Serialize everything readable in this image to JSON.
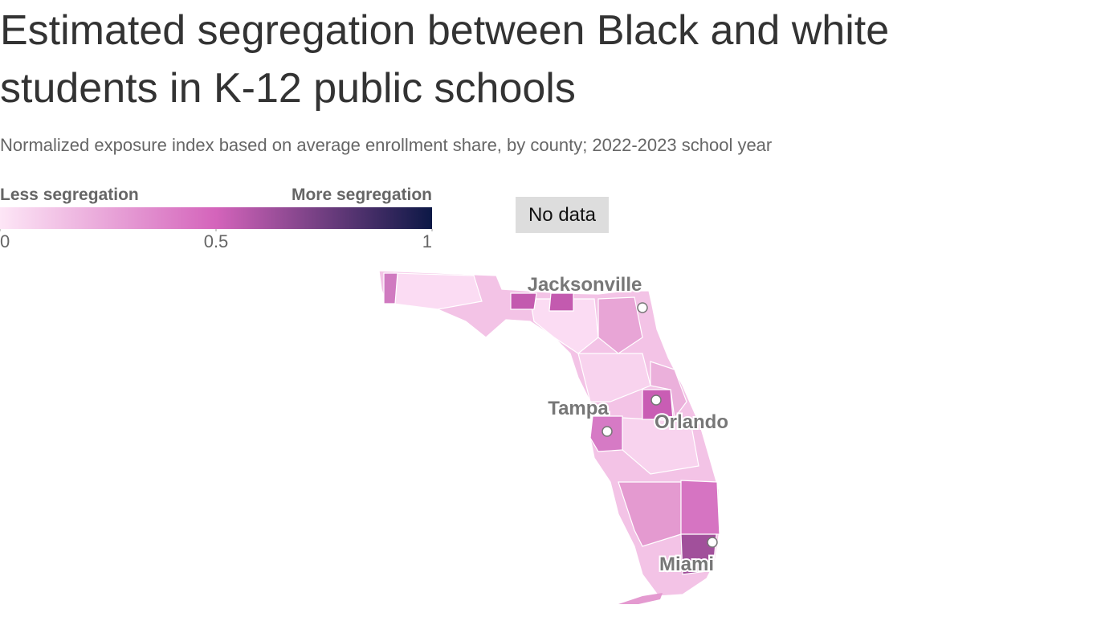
{
  "header": {
    "title": "Estimated segregation between Black and white students in K-12 public schools",
    "subtitle": "Normalized exposure index based on average enrollment share, by county; 2022-2023 school year"
  },
  "legend": {
    "low_label": "Less segregation",
    "high_label": "More segregation",
    "range": [
      0,
      1
    ],
    "ticks": [
      0,
      0.5,
      1
    ],
    "colors": [
      "#fde6f6",
      "#d464bb",
      "#0c1846"
    ],
    "no_data": "No data"
  },
  "cities": [
    "Jacksonville",
    "Tampa",
    "Orlando",
    "Miami"
  ]
}
